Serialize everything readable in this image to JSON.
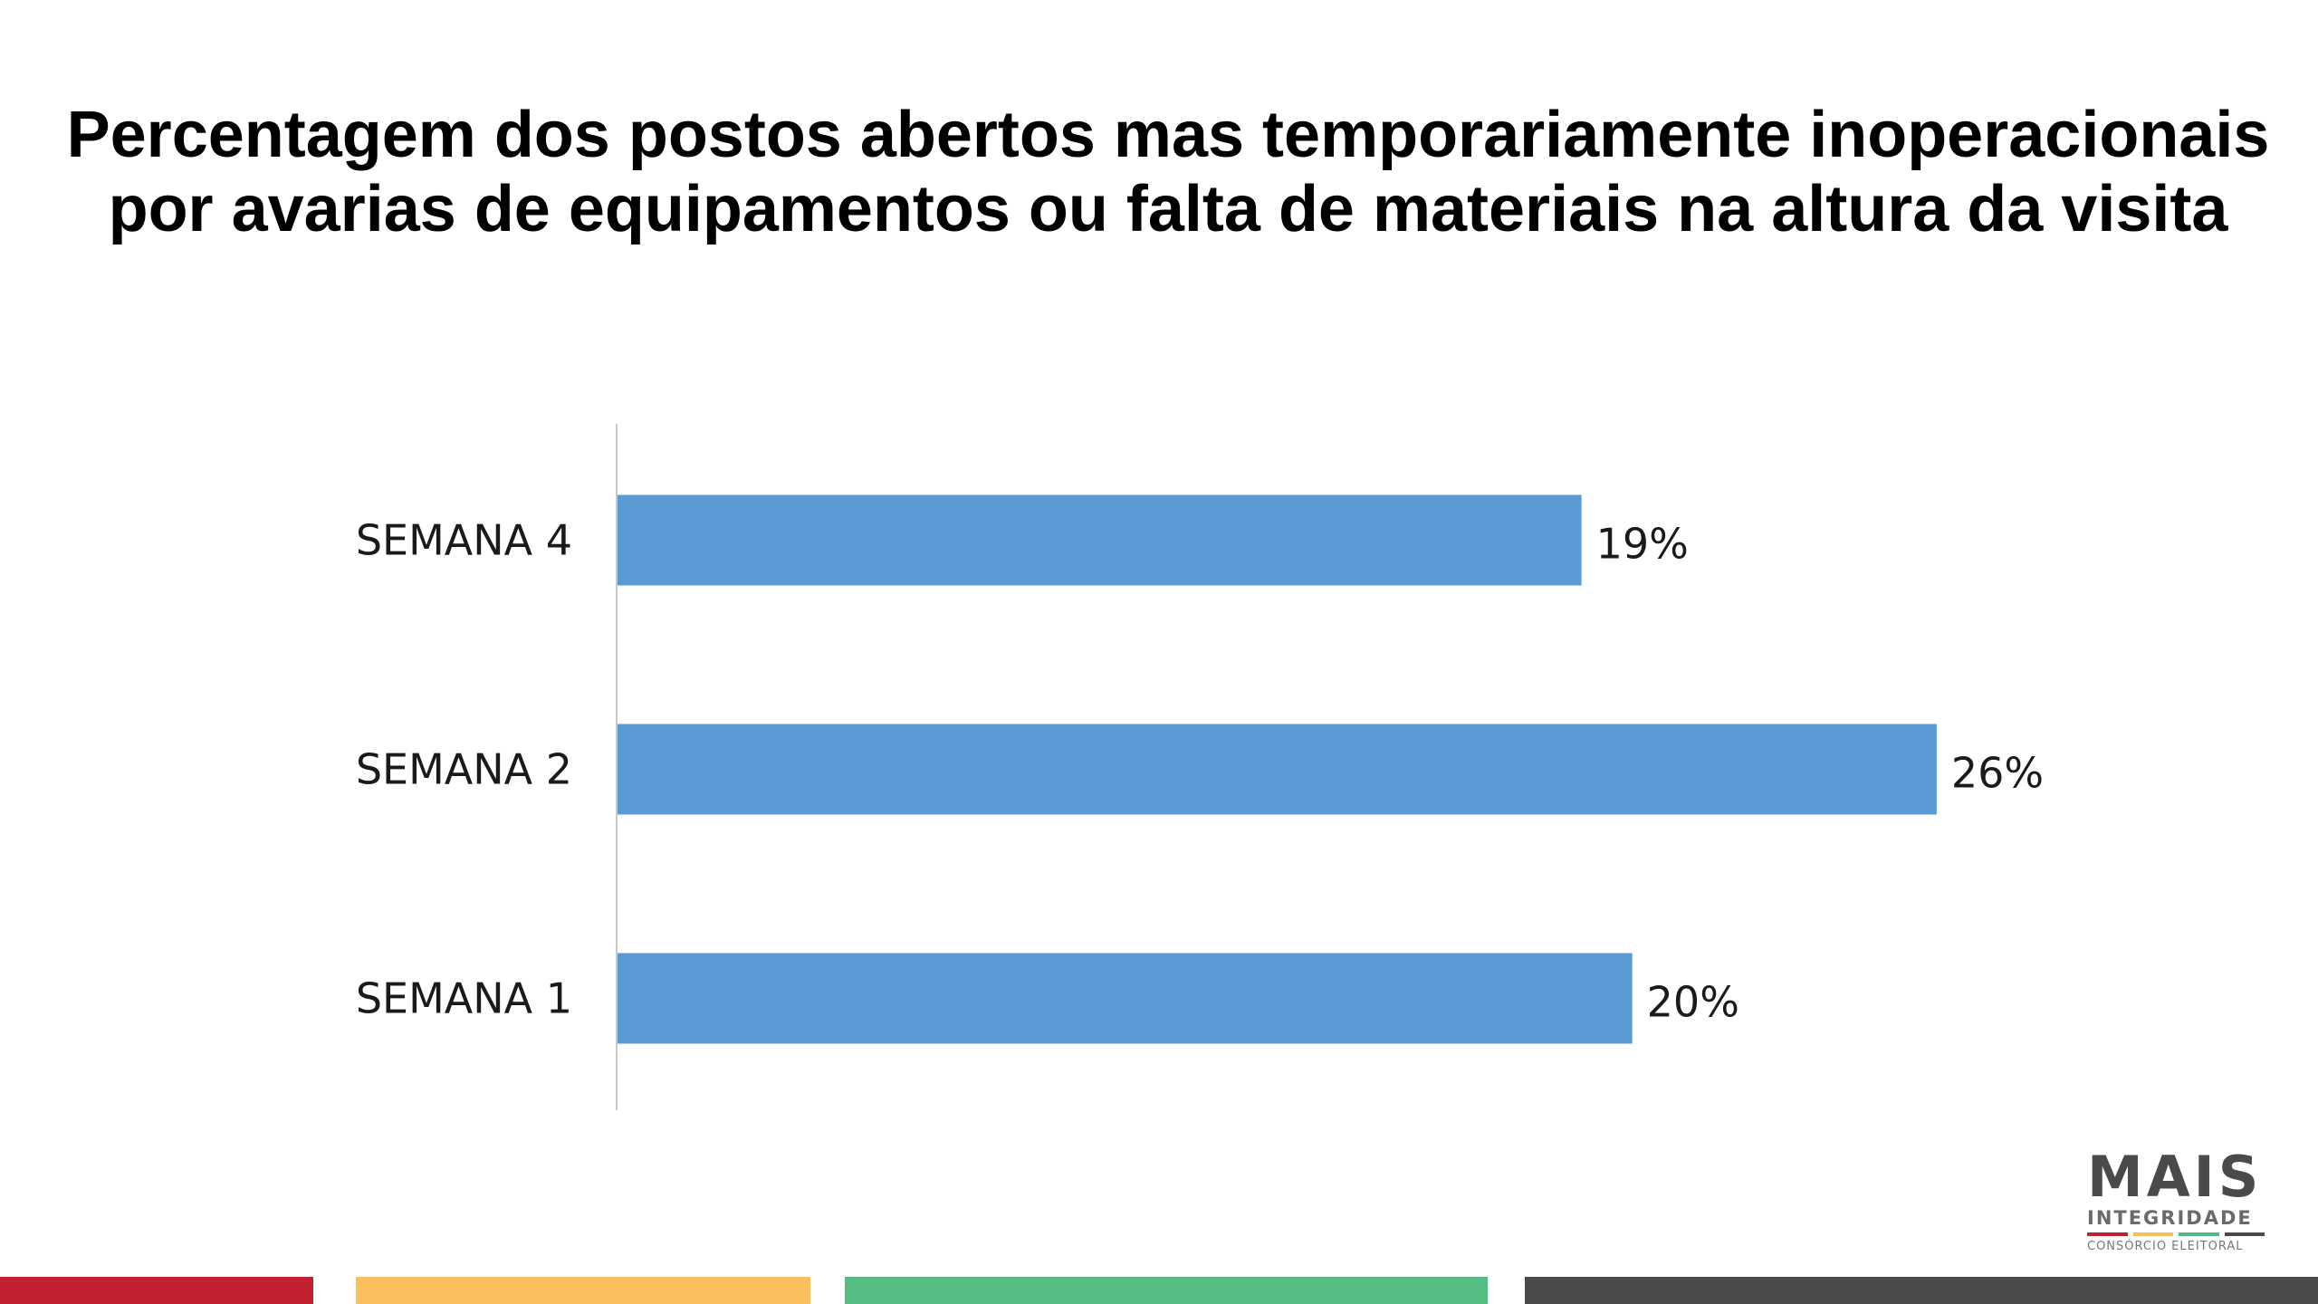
{
  "chart_data": {
    "type": "bar",
    "orientation": "horizontal",
    "title": "Percentagem dos postos abertos mas temporariamente inoperacionais por avarias de equipamentos ou falta de materiais na altura da visita",
    "categories": [
      "SEMANA 4",
      "SEMANA 2",
      "SEMANA 1"
    ],
    "values": [
      19,
      26,
      20
    ],
    "data_labels": [
      "19%",
      "26%",
      "20%"
    ],
    "value_unit": "%",
    "xlim": [
      0,
      30
    ],
    "grid": false,
    "legend": "none",
    "bar_color": "#5B9BD5"
  },
  "logo": {
    "main": "MAIS",
    "sub": "INTEGRIDADE",
    "caption": "CONSÓRCIO ELEITORAL",
    "stripe_colors": [
      "#C0202F",
      "#F9BE5A",
      "#52B883",
      "#4A4A4A"
    ]
  },
  "footer": {
    "colors": [
      "#C0202F",
      "#FBBF5E",
      "#55BC83",
      "#4A4A4A"
    ]
  }
}
